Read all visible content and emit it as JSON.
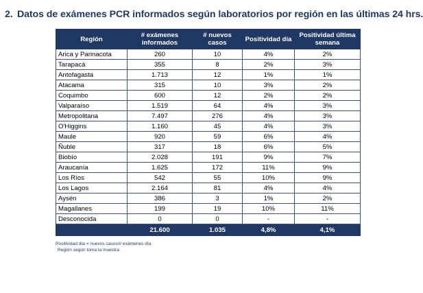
{
  "heading": {
    "number": "2.",
    "title": "Datos de exámenes PCR informados según laboratorios por región en las últimas 24 hrs."
  },
  "table": {
    "columns": [
      "Región",
      "# exámenes informados",
      "# nuevos casos",
      "Positividad día",
      "Positividad última semana"
    ],
    "rows": [
      {
        "region": "Arica y Parinacota",
        "exams": "260",
        "cases": "10",
        "pos_day": "4%",
        "pos_week": "2%"
      },
      {
        "region": "Tarapacá",
        "exams": "355",
        "cases": "8",
        "pos_day": "2%",
        "pos_week": "3%"
      },
      {
        "region": "Antofagasta",
        "exams": "1.713",
        "cases": "12",
        "pos_day": "1%",
        "pos_week": "1%"
      },
      {
        "region": "Atacama",
        "exams": "315",
        "cases": "10",
        "pos_day": "3%",
        "pos_week": "2%"
      },
      {
        "region": "Coquimbo",
        "exams": "600",
        "cases": "12",
        "pos_day": "2%",
        "pos_week": "2%"
      },
      {
        "region": "Valparaíso",
        "exams": "1.519",
        "cases": "64",
        "pos_day": "4%",
        "pos_week": "3%"
      },
      {
        "region": "Metropolitana",
        "exams": "7.497",
        "cases": "276",
        "pos_day": "4%",
        "pos_week": "3%"
      },
      {
        "region": "O'Higgins",
        "exams": "1.160",
        "cases": "45",
        "pos_day": "4%",
        "pos_week": "3%"
      },
      {
        "region": "Maule",
        "exams": "920",
        "cases": "59",
        "pos_day": "6%",
        "pos_week": "4%"
      },
      {
        "region": "Ñuble",
        "exams": "317",
        "cases": "18",
        "pos_day": "6%",
        "pos_week": "5%"
      },
      {
        "region": "Biobío",
        "exams": "2.028",
        "cases": "191",
        "pos_day": "9%",
        "pos_week": "7%"
      },
      {
        "region": "Araucanía",
        "exams": "1.625",
        "cases": "172",
        "pos_day": "11%",
        "pos_week": "9%"
      },
      {
        "region": "Los Ríos",
        "exams": "542",
        "cases": "55",
        "pos_day": "10%",
        "pos_week": "9%"
      },
      {
        "region": "Los Lagos",
        "exams": "2.164",
        "cases": "81",
        "pos_day": "4%",
        "pos_week": "4%"
      },
      {
        "region": "Aysén",
        "exams": "386",
        "cases": "3",
        "pos_day": "1%",
        "pos_week": "2%"
      },
      {
        "region": "Magallanes",
        "exams": "199",
        "cases": "19",
        "pos_day": "10%",
        "pos_week": "11%"
      },
      {
        "region": "Desconocida",
        "exams": "0",
        "cases": "0",
        "pos_day": "-",
        "pos_week": "-"
      }
    ],
    "totals": {
      "region": "",
      "exams": "21.600",
      "cases": "1.035",
      "pos_day": "4,8%",
      "pos_week": "4,1%"
    }
  },
  "notes": [
    "Positividad día = nuevos casos/# exámenes día",
    "Región según toma la muestra"
  ],
  "colors": {
    "header_bg": "#1f3864",
    "header_text": "#ffffff",
    "heading_text": "#1f3864"
  }
}
